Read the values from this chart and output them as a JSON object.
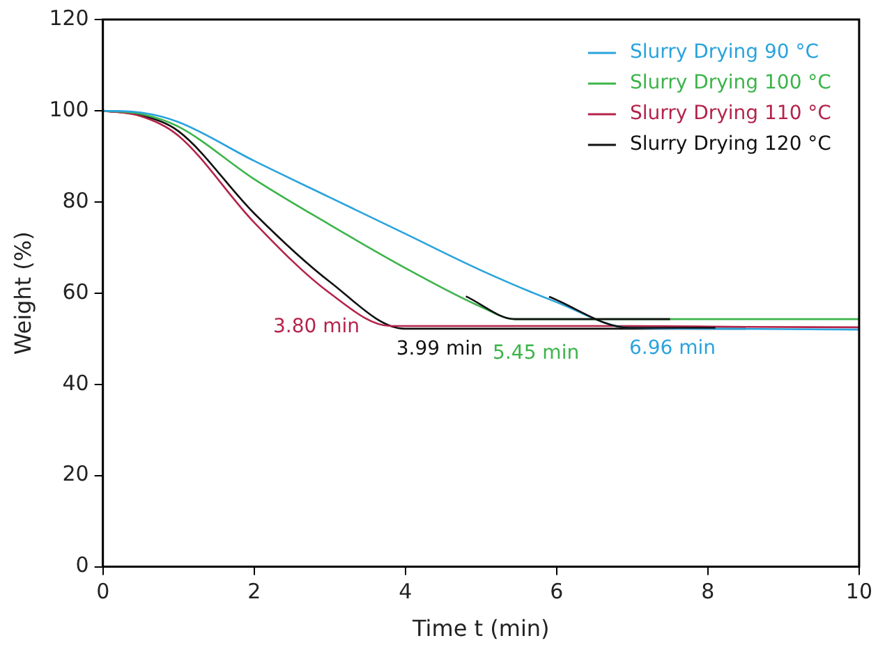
{
  "chart_data": {
    "type": "line",
    "xlabel": "Time t (min)",
    "ylabel": "Weight (%)",
    "xlim": [
      0,
      10
    ],
    "xticks": [
      0,
      2,
      4,
      6,
      8,
      10
    ],
    "ylim": [
      0,
      120
    ],
    "yticks": [
      0,
      20,
      40,
      60,
      80,
      100,
      120
    ],
    "grid": false,
    "legend": "top right",
    "marker": "none",
    "line_style": "solid",
    "series": [
      {
        "name": "Slurry Drying 90 °C",
        "color": "#29a3dc",
        "x": [
          0,
          0.5,
          1,
          2,
          3,
          4,
          5,
          6,
          6.96,
          8,
          9,
          10
        ],
        "values": [
          100,
          99.6,
          97.5,
          89,
          81,
          73,
          65,
          58,
          52.4,
          52.2,
          52.1,
          52
        ]
      },
      {
        "name": "Slurry Drying 100 °C",
        "color": "#3cb44a",
        "x": [
          0,
          0.5,
          1,
          2,
          3,
          4,
          5,
          5.45,
          7,
          8.5,
          10
        ],
        "values": [
          100,
          99.3,
          96.5,
          85,
          75,
          65.5,
          57,
          54.3,
          54.3,
          54.3,
          54.3
        ]
      },
      {
        "name": "Slurry Drying 110 °C",
        "color": "#b5234a",
        "x": [
          0,
          0.5,
          1,
          2,
          3,
          3.8,
          5,
          7,
          8.5,
          10
        ],
        "values": [
          100,
          98.8,
          94.5,
          75.5,
          60,
          52.8,
          52.8,
          52.8,
          52.6,
          52.5
        ]
      },
      {
        "name": "Slurry Drying 120 °C",
        "color": "#111111",
        "x": [
          0,
          0.5,
          1,
          2,
          3,
          3.99,
          5,
          7,
          8.5
        ],
        "values": [
          100,
          99,
          95.5,
          77.5,
          62.5,
          52.2,
          52.2,
          52.2,
          52.2
        ]
      },
      {
        "color": "#111111",
        "x": [
          4.8,
          5.45,
          7.5
        ],
        "values": [
          59.3,
          54.3,
          54.3
        ]
      },
      {
        "color": "#111111",
        "x": [
          5.9,
          6.96,
          8.1
        ],
        "values": [
          59.2,
          52.4,
          52.4
        ]
      }
    ],
    "annotations": [
      {
        "text": "3.80 min",
        "x": 3.8,
        "y": 52.8
      },
      {
        "text": "3.99 min",
        "x": 3.99,
        "y": 52.2
      },
      {
        "text": "5.45 min",
        "x": 5.45,
        "y": 54.3
      },
      {
        "text": "6.96 min",
        "x": 6.96,
        "y": 52.4
      }
    ]
  }
}
